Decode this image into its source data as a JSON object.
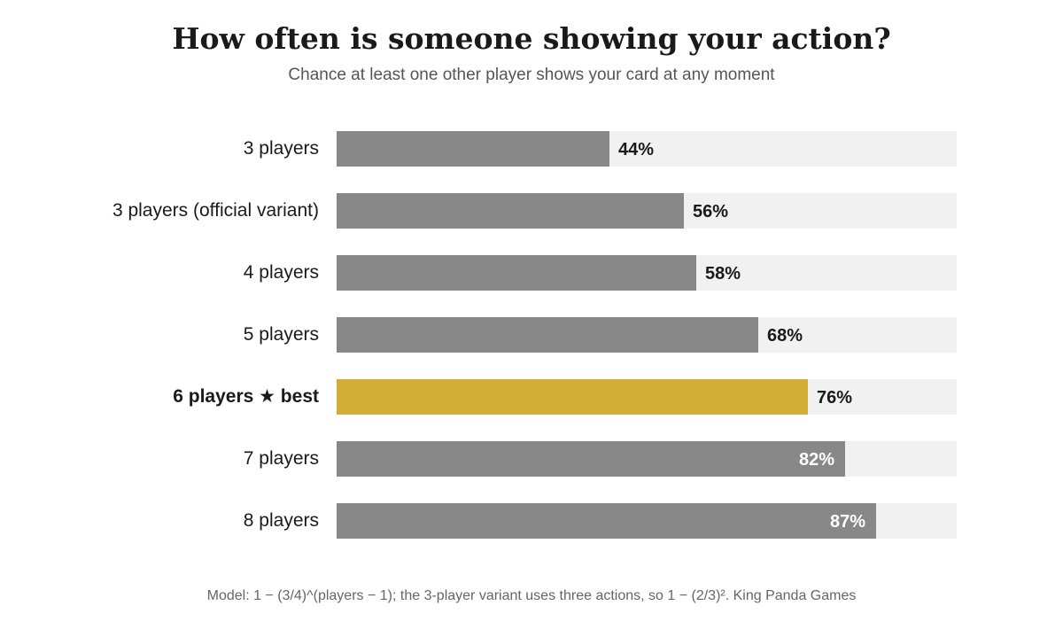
{
  "title": "How often is someone showing your action?",
  "subtitle": "Chance at least one other player shows your card at any moment",
  "footnote": "Model: 1 − (3/4)^(players − 1); the 3-player variant uses three actions, so 1 − (2/3)². King Panda Games",
  "colors": {
    "bar": "#888888",
    "highlight": "#d4af37",
    "track": "#f1f1f1"
  },
  "chart_data": {
    "type": "bar",
    "orientation": "horizontal",
    "categories": [
      "3 players",
      "3 players (official variant)",
      "4 players",
      "5 players",
      "6 players ★ best",
      "7 players",
      "8 players"
    ],
    "values": [
      44,
      56,
      58,
      68,
      76,
      82,
      87
    ],
    "value_labels": [
      "44%",
      "56%",
      "58%",
      "68%",
      "76%",
      "82%",
      "87%"
    ],
    "highlight": "6 players ★ best",
    "xlim": [
      0,
      100
    ],
    "grid": false,
    "legend": "none"
  }
}
